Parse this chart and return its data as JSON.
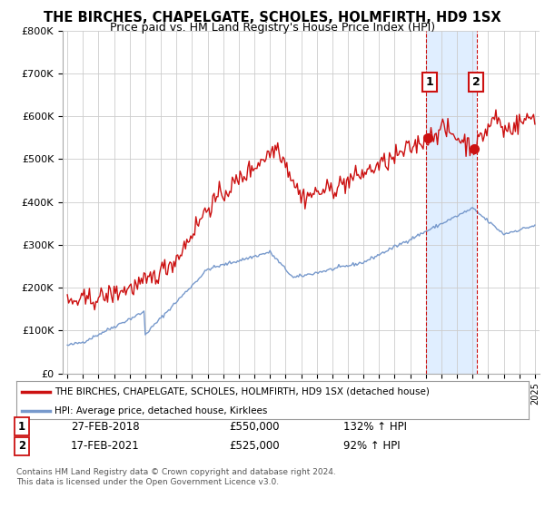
{
  "title": "THE BIRCHES, CHAPELGATE, SCHOLES, HOLMFIRTH, HD9 1SX",
  "subtitle": "Price paid vs. HM Land Registry's House Price Index (HPI)",
  "title_fontsize": 10.5,
  "subtitle_fontsize": 9,
  "background_color": "#ffffff",
  "plot_bg_color": "#ffffff",
  "grid_color": "#cccccc",
  "hpi_line_color": "#7799cc",
  "house_line_color": "#cc1111",
  "highlight_bg": "#e0eeff",
  "ylim": [
    0,
    800000
  ],
  "yticks": [
    0,
    100000,
    200000,
    300000,
    400000,
    500000,
    600000,
    700000,
    800000
  ],
  "ytick_labels": [
    "£0",
    "£100K",
    "£200K",
    "£300K",
    "£400K",
    "£500K",
    "£600K",
    "£700K",
    "£800K"
  ],
  "xlim_start": 1994.7,
  "xlim_end": 2025.3,
  "xtick_years": [
    1995,
    1996,
    1997,
    1998,
    1999,
    2000,
    2001,
    2002,
    2003,
    2004,
    2005,
    2006,
    2007,
    2008,
    2009,
    2010,
    2011,
    2012,
    2013,
    2014,
    2015,
    2016,
    2017,
    2018,
    2019,
    2020,
    2021,
    2022,
    2023,
    2024,
    2025
  ],
  "sale1_x": 2018.15,
  "sale1_y": 550000,
  "sale1_label": "1",
  "sale2_x": 2021.12,
  "sale2_y": 525000,
  "sale2_label": "2",
  "highlight_x_start": 2018.0,
  "highlight_x_end": 2021.25,
  "legend_line1": "THE BIRCHES, CHAPELGATE, SCHOLES, HOLMFIRTH, HD9 1SX (detached house)",
  "legend_line2": "HPI: Average price, detached house, Kirklees",
  "table_row1_num": "1",
  "table_row1_date": "27-FEB-2018",
  "table_row1_price": "£550,000",
  "table_row1_hpi": "132% ↑ HPI",
  "table_row2_num": "2",
  "table_row2_date": "17-FEB-2021",
  "table_row2_price": "£525,000",
  "table_row2_hpi": "92% ↑ HPI",
  "footnote": "Contains HM Land Registry data © Crown copyright and database right 2024.\nThis data is licensed under the Open Government Licence v3.0."
}
